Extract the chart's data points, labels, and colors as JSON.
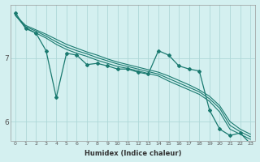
{
  "xlabel": "Humidex (Indice chaleur)",
  "bg_color": "#d4f0f0",
  "grid_color": "#aed8d8",
  "line_color": "#1a7a70",
  "xlim": [
    -0.5,
    23.5
  ],
  "ylim": [
    5.7,
    7.85
  ],
  "yticks": [
    6,
    7
  ],
  "xticks": [
    0,
    1,
    2,
    3,
    4,
    5,
    6,
    7,
    8,
    9,
    10,
    11,
    12,
    13,
    14,
    15,
    16,
    17,
    18,
    19,
    20,
    21,
    22,
    23
  ],
  "series_smooth": [
    [
      7.68,
      7.52,
      7.45,
      7.38,
      7.3,
      7.22,
      7.16,
      7.1,
      7.05,
      6.99,
      6.94,
      6.9,
      6.86,
      6.82,
      6.78,
      6.72,
      6.65,
      6.58,
      6.5,
      6.4,
      6.25,
      6.0,
      5.88,
      5.8
    ],
    [
      7.68,
      7.5,
      7.43,
      7.35,
      7.26,
      7.18,
      7.12,
      7.07,
      7.01,
      6.96,
      6.91,
      6.87,
      6.83,
      6.79,
      6.75,
      6.68,
      6.61,
      6.54,
      6.47,
      6.36,
      6.21,
      5.94,
      5.84,
      5.76
    ],
    [
      7.68,
      7.48,
      7.4,
      7.32,
      7.22,
      7.14,
      7.08,
      7.03,
      6.97,
      6.92,
      6.87,
      6.84,
      6.8,
      6.76,
      6.72,
      6.64,
      6.57,
      6.5,
      6.43,
      6.32,
      6.15,
      5.88,
      5.8,
      5.72
    ]
  ],
  "series_wiggly": [
    7.72,
    7.47,
    7.4,
    7.12,
    6.38,
    7.08,
    7.05,
    6.9,
    6.92,
    6.88,
    6.83,
    6.83,
    6.78,
    6.75,
    7.12,
    7.05,
    6.88,
    6.83,
    6.8,
    6.18,
    5.88,
    5.78,
    5.82,
    5.65
  ]
}
